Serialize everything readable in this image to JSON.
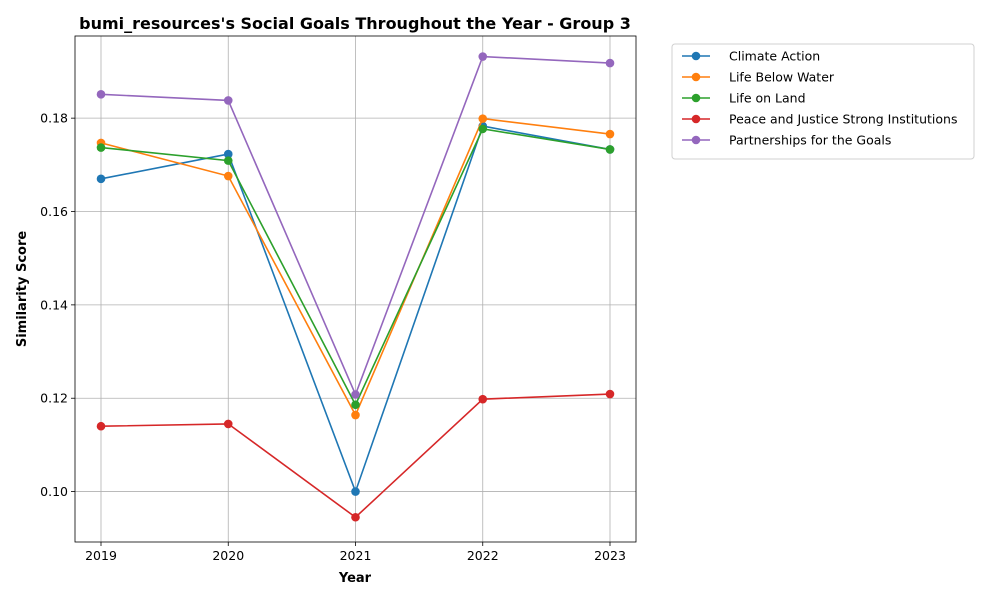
{
  "chart_data": {
    "type": "line",
    "title": "bumi_resources's Social Goals Throughout the Year - Group 3",
    "xlabel": "Year",
    "ylabel": "Similarity Score",
    "x": [
      "2019",
      "2020",
      "2021",
      "2022",
      "2023"
    ],
    "ylim": [
      0.0892,
      0.1976
    ],
    "yticks": [
      0.1,
      0.12,
      0.14,
      0.16,
      0.18
    ],
    "ytick_labels": [
      "0.10",
      "0.12",
      "0.14",
      "0.16",
      "0.18"
    ],
    "grid": true,
    "legend_position": "outside-top-right",
    "series": [
      {
        "name": "Climate Action",
        "color": "#1f77b4",
        "values": [
          0.167,
          0.1723,
          0.1,
          0.1783,
          0.1733
        ]
      },
      {
        "name": "Life Below Water",
        "color": "#ff7f0e",
        "values": [
          0.1747,
          0.1676,
          0.1164,
          0.1799,
          0.1766
        ]
      },
      {
        "name": "Life on Land",
        "color": "#2ca02c",
        "values": [
          0.1737,
          0.1709,
          0.1186,
          0.1777,
          0.1733
        ]
      },
      {
        "name": "Peace and Justice Strong Institutions",
        "color": "#d62728",
        "values": [
          0.114,
          0.1145,
          0.0945,
          0.1198,
          0.1209
        ]
      },
      {
        "name": "Partnerships for the Goals",
        "color": "#9467bd",
        "values": [
          0.1851,
          0.1838,
          0.1208,
          0.1932,
          0.1918
        ]
      }
    ]
  }
}
